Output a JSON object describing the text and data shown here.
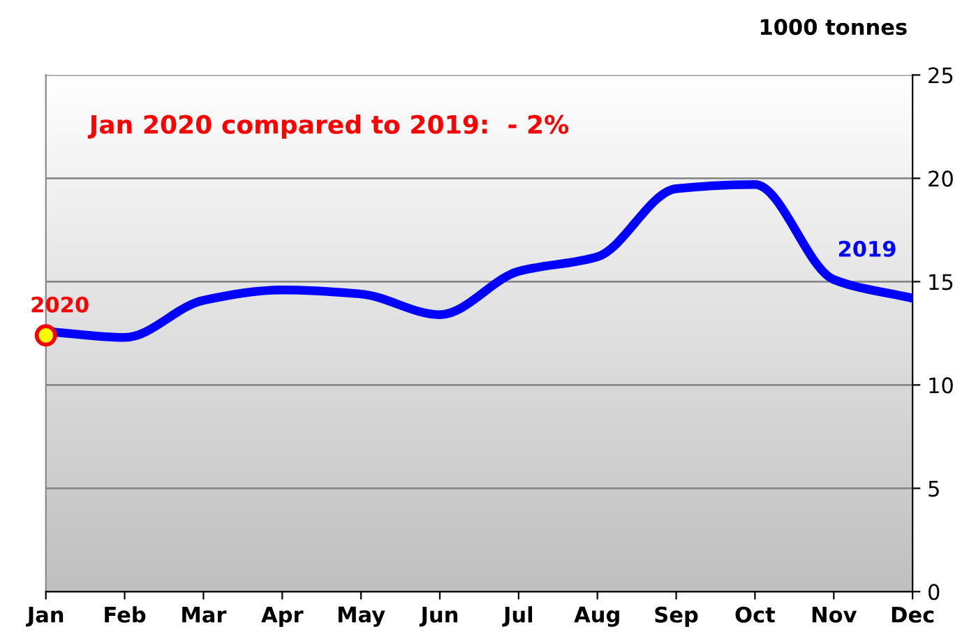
{
  "chart_data": {
    "type": "line",
    "ylabel": "1000 tonnes",
    "annotations": [
      "Jan 2020 compared to 2019:  - 2%"
    ],
    "categories": [
      "Jan",
      "Feb",
      "Mar",
      "Apr",
      "May",
      "Jun",
      "Jul",
      "Aug",
      "Sep",
      "Oct",
      "Nov",
      "Dec"
    ],
    "series": [
      {
        "name": "2019",
        "color": "#0000ff",
        "values": [
          12.6,
          12.3,
          14.1,
          14.6,
          14.4,
          13.4,
          15.5,
          16.2,
          19.5,
          19.7,
          15.1,
          14.2
        ]
      },
      {
        "name": "2020",
        "type": "scatter",
        "color": "#ffff00",
        "values": [
          12.4,
          null,
          null,
          null,
          null,
          null,
          null,
          null,
          null,
          null,
          null,
          null
        ]
      }
    ],
    "ylim": [
      0,
      25
    ],
    "yticks": [
      0,
      5,
      10,
      15,
      20,
      25
    ],
    "grid": "y",
    "legend": false
  }
}
